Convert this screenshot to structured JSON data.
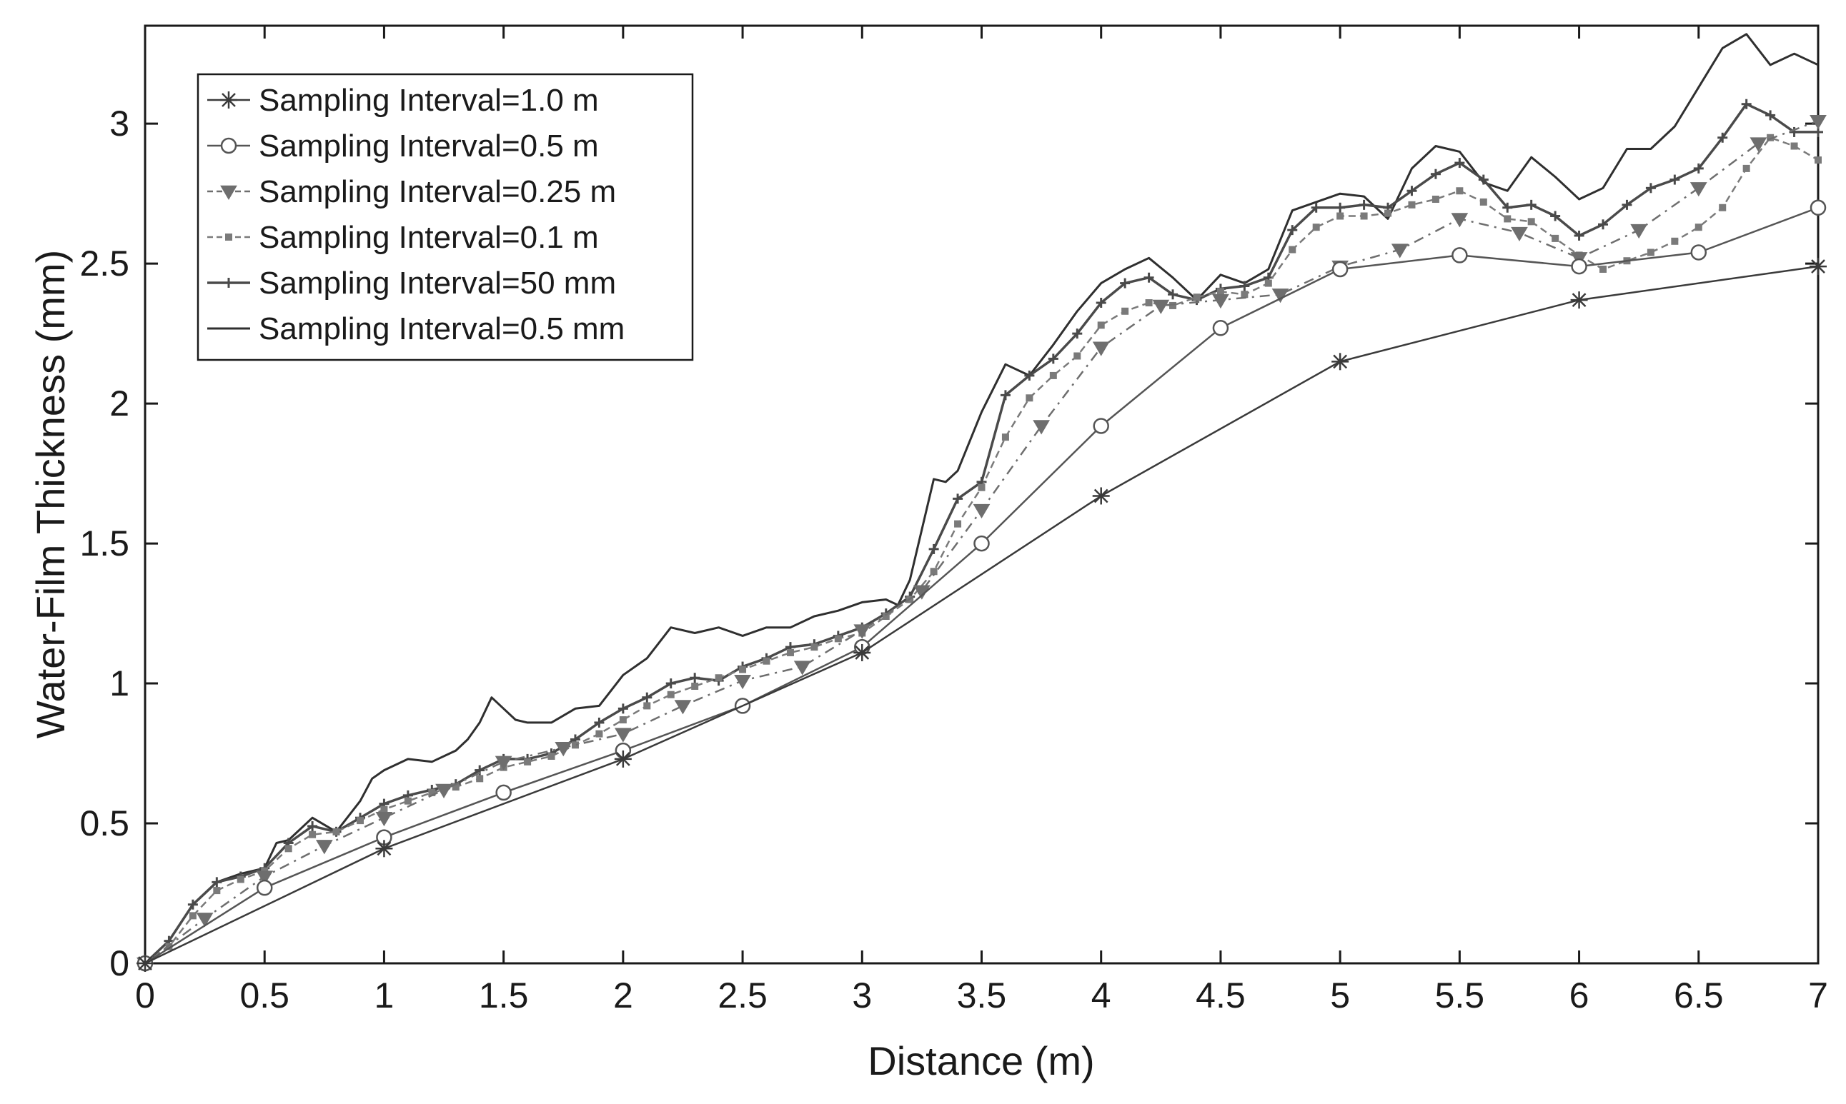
{
  "chart_data": {
    "type": "line",
    "title": "",
    "xlabel": "Distance (m)",
    "ylabel": "Water-Film Thickness (mm)",
    "xlim": [
      0,
      7
    ],
    "ylim": [
      0,
      3.35
    ],
    "xticks": [
      0,
      0.5,
      1,
      1.5,
      2,
      2.5,
      3,
      3.5,
      4,
      4.5,
      5,
      5.5,
      6,
      6.5,
      7
    ],
    "xtick_labels": [
      "0",
      "0.5",
      "1",
      "1.5",
      "2",
      "2.5",
      "3",
      "3.5",
      "4",
      "4.5",
      "5",
      "5.5",
      "6",
      "6.5",
      "7"
    ],
    "yticks": [
      0,
      0.5,
      1,
      1.5,
      2,
      2.5,
      3
    ],
    "ytick_labels": [
      "0",
      "0.5",
      "1",
      "1.5",
      "2",
      "2.5",
      "3"
    ],
    "grid": false,
    "legend_position": "top-left",
    "series": [
      {
        "name": "Sampling Interval=1.0 m",
        "marker": "star",
        "color": "#3a3a3a",
        "x": [
          0,
          1,
          2,
          3,
          4,
          5,
          6,
          7
        ],
        "y": [
          0,
          0.41,
          0.73,
          1.11,
          1.67,
          2.15,
          2.37,
          2.49
        ]
      },
      {
        "name": "Sampling Interval=0.5 m",
        "marker": "circle",
        "color": "#555555",
        "x": [
          0,
          0.5,
          1,
          1.5,
          2,
          2.5,
          3,
          3.5,
          4,
          4.5,
          5,
          5.5,
          6,
          6.5,
          7
        ],
        "y": [
          0,
          0.27,
          0.45,
          0.61,
          0.76,
          0.92,
          1.13,
          1.5,
          1.92,
          2.27,
          2.48,
          2.53,
          2.49,
          2.54,
          2.7
        ]
      },
      {
        "name": "Sampling Interval=0.25 m",
        "marker": "triangle-down",
        "color": "#6e6e6e",
        "x": [
          0,
          0.25,
          0.5,
          0.75,
          1,
          1.25,
          1.5,
          1.75,
          2,
          2.25,
          2.5,
          2.75,
          3,
          3.25,
          3.5,
          3.75,
          4,
          4.25,
          4.5,
          4.75,
          5,
          5.25,
          5.5,
          5.75,
          6,
          6.25,
          6.5,
          6.75,
          7
        ],
        "y": [
          0,
          0.16,
          0.31,
          0.42,
          0.52,
          0.62,
          0.72,
          0.77,
          0.82,
          0.92,
          1.01,
          1.06,
          1.19,
          1.33,
          1.62,
          1.92,
          2.2,
          2.35,
          2.37,
          2.39,
          2.49,
          2.55,
          2.66,
          2.61,
          2.52,
          2.62,
          2.77,
          2.93,
          3.01
        ]
      },
      {
        "name": "Sampling Interval=0.1 m",
        "marker": "square",
        "color": "#7a7a7a",
        "x": [
          0,
          0.1,
          0.2,
          0.3,
          0.4,
          0.5,
          0.6,
          0.7,
          0.8,
          0.9,
          1.0,
          1.1,
          1.2,
          1.3,
          1.4,
          1.5,
          1.6,
          1.7,
          1.8,
          1.9,
          2.0,
          2.1,
          2.2,
          2.3,
          2.4,
          2.5,
          2.6,
          2.7,
          2.8,
          2.9,
          3.0,
          3.1,
          3.2,
          3.3,
          3.4,
          3.5,
          3.6,
          3.7,
          3.8,
          3.9,
          4.0,
          4.1,
          4.2,
          4.3,
          4.4,
          4.5,
          4.6,
          4.7,
          4.8,
          4.9,
          5.0,
          5.1,
          5.2,
          5.3,
          5.4,
          5.5,
          5.6,
          5.7,
          5.8,
          5.9,
          6.0,
          6.1,
          6.2,
          6.3,
          6.4,
          6.5,
          6.6,
          6.7,
          6.8,
          6.9,
          7.0
        ],
        "y": [
          0,
          0.06,
          0.17,
          0.26,
          0.3,
          0.33,
          0.41,
          0.46,
          0.47,
          0.51,
          0.55,
          0.58,
          0.61,
          0.63,
          0.66,
          0.7,
          0.72,
          0.74,
          0.78,
          0.82,
          0.87,
          0.92,
          0.96,
          0.99,
          1.02,
          1.05,
          1.08,
          1.11,
          1.13,
          1.16,
          1.18,
          1.24,
          1.3,
          1.4,
          1.57,
          1.7,
          1.88,
          2.02,
          2.1,
          2.17,
          2.28,
          2.33,
          2.36,
          2.35,
          2.38,
          2.4,
          2.39,
          2.43,
          2.55,
          2.63,
          2.67,
          2.67,
          2.68,
          2.71,
          2.73,
          2.76,
          2.72,
          2.66,
          2.65,
          2.59,
          2.53,
          2.48,
          2.51,
          2.54,
          2.58,
          2.63,
          2.7,
          2.84,
          2.95,
          2.92,
          2.87
        ]
      },
      {
        "name": "Sampling Interval=50 mm",
        "marker": "plus",
        "color": "#4a4a4a",
        "x": [
          0,
          0.1,
          0.2,
          0.3,
          0.4,
          0.5,
          0.6,
          0.7,
          0.8,
          0.9,
          1.0,
          1.1,
          1.2,
          1.3,
          1.4,
          1.5,
          1.6,
          1.7,
          1.8,
          1.9,
          2.0,
          2.1,
          2.2,
          2.3,
          2.4,
          2.5,
          2.6,
          2.7,
          2.8,
          2.9,
          3.0,
          3.1,
          3.2,
          3.3,
          3.4,
          3.5,
          3.6,
          3.7,
          3.8,
          3.9,
          4.0,
          4.1,
          4.2,
          4.3,
          4.4,
          4.5,
          4.6,
          4.7,
          4.8,
          4.9,
          5.0,
          5.1,
          5.2,
          5.3,
          5.4,
          5.5,
          5.6,
          5.7,
          5.8,
          5.9,
          6.0,
          6.1,
          6.2,
          6.3,
          6.4,
          6.5,
          6.6,
          6.7,
          6.8,
          6.9,
          7.0
        ],
        "y": [
          0,
          0.08,
          0.21,
          0.29,
          0.31,
          0.34,
          0.43,
          0.49,
          0.47,
          0.52,
          0.57,
          0.6,
          0.62,
          0.64,
          0.69,
          0.73,
          0.73,
          0.75,
          0.8,
          0.86,
          0.91,
          0.95,
          1.0,
          1.02,
          1.01,
          1.06,
          1.09,
          1.13,
          1.14,
          1.17,
          1.2,
          1.25,
          1.31,
          1.48,
          1.66,
          1.72,
          2.03,
          2.1,
          2.16,
          2.25,
          2.36,
          2.43,
          2.45,
          2.39,
          2.37,
          2.41,
          2.42,
          2.45,
          2.62,
          2.7,
          2.7,
          2.71,
          2.7,
          2.76,
          2.82,
          2.86,
          2.8,
          2.7,
          2.71,
          2.67,
          2.6,
          2.64,
          2.71,
          2.77,
          2.8,
          2.84,
          2.95,
          3.07,
          3.03,
          2.97,
          2.97
        ]
      },
      {
        "name": "Sampling Interval=0.5 mm",
        "marker": "none",
        "color": "#2f2f2f",
        "x": [
          0,
          0.1,
          0.2,
          0.3,
          0.4,
          0.5,
          0.55,
          0.6,
          0.7,
          0.8,
          0.9,
          0.95,
          1.0,
          1.1,
          1.2,
          1.3,
          1.35,
          1.4,
          1.45,
          1.5,
          1.55,
          1.6,
          1.7,
          1.8,
          1.9,
          2.0,
          2.1,
          2.2,
          2.3,
          2.4,
          2.5,
          2.6,
          2.7,
          2.8,
          2.9,
          3.0,
          3.1,
          3.15,
          3.2,
          3.3,
          3.35,
          3.4,
          3.5,
          3.6,
          3.7,
          3.8,
          3.9,
          4.0,
          4.1,
          4.2,
          4.3,
          4.4,
          4.5,
          4.6,
          4.7,
          4.8,
          4.9,
          5.0,
          5.1,
          5.2,
          5.3,
          5.4,
          5.5,
          5.6,
          5.7,
          5.8,
          5.9,
          6.0,
          6.1,
          6.2,
          6.3,
          6.4,
          6.5,
          6.6,
          6.7,
          6.8,
          6.9,
          7.0
        ],
        "y": [
          0,
          0.08,
          0.21,
          0.29,
          0.32,
          0.34,
          0.43,
          0.44,
          0.52,
          0.47,
          0.58,
          0.66,
          0.69,
          0.73,
          0.72,
          0.76,
          0.8,
          0.86,
          0.95,
          0.91,
          0.87,
          0.86,
          0.86,
          0.91,
          0.92,
          1.03,
          1.09,
          1.2,
          1.18,
          1.2,
          1.17,
          1.2,
          1.2,
          1.24,
          1.26,
          1.29,
          1.3,
          1.28,
          1.37,
          1.73,
          1.72,
          1.76,
          1.97,
          2.14,
          2.1,
          2.21,
          2.33,
          2.43,
          2.48,
          2.52,
          2.45,
          2.37,
          2.46,
          2.43,
          2.48,
          2.69,
          2.72,
          2.75,
          2.74,
          2.66,
          2.84,
          2.92,
          2.9,
          2.79,
          2.76,
          2.88,
          2.81,
          2.73,
          2.77,
          2.91,
          2.91,
          2.99,
          3.13,
          3.27,
          3.32,
          3.21,
          3.25,
          3.21
        ]
      }
    ]
  }
}
